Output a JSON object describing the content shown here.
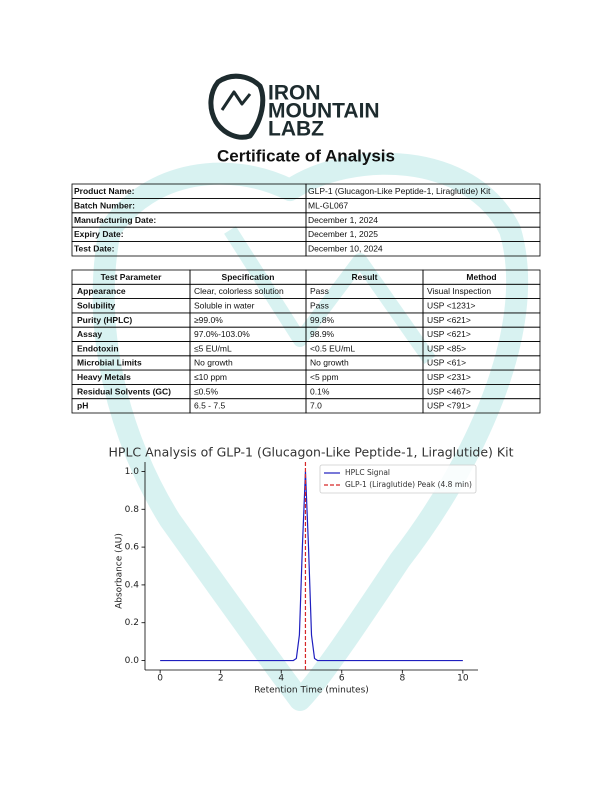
{
  "header": {
    "brand": [
      "IRON",
      "MOUNTAIN",
      "LABZ"
    ],
    "title": "Certificate of Analysis"
  },
  "info_table": {
    "rows": [
      [
        "Product Name:",
        "GLP-1 (Glucagon-Like Peptide-1, Liraglutide) Kit"
      ],
      [
        "Batch Number:",
        "ML-GL067"
      ],
      [
        "Manufacturing Date:",
        "December 1, 2024"
      ],
      [
        "Expiry Date:",
        "December 1, 2025"
      ],
      [
        "Test Date:",
        "December 10, 2024"
      ]
    ]
  },
  "test_table": {
    "columns": [
      "Test Parameter",
      "Specification",
      "Result",
      "Method"
    ],
    "rows": [
      [
        "Appearance",
        "Clear, colorless solution",
        "Pass",
        "Visual Inspection"
      ],
      [
        "Solubility",
        "Soluble in water",
        "Pass",
        "USP <1231>"
      ],
      [
        "Purity (HPLC)",
        "≥99.0%",
        "99.8%",
        "USP <621>"
      ],
      [
        "Assay",
        "97.0%-103.0%",
        "98.9%",
        "USP <621>"
      ],
      [
        "Endotoxin",
        "≤5 EU/mL",
        "<0.5 EU/mL",
        "USP <85>"
      ],
      [
        "Microbial Limits",
        "No growth",
        "No growth",
        "USP <61>"
      ],
      [
        "Heavy Metals",
        "≤10 ppm",
        "<5 ppm",
        "USP <231>"
      ],
      [
        "Residual Solvents (GC)",
        "≤0.5%",
        "0.1%",
        "USP <467>"
      ],
      [
        "pH",
        "6.5 - 7.5",
        "7.0",
        "USP <791>"
      ]
    ]
  },
  "chart_data": {
    "type": "line",
    "title": "HPLC Analysis of GLP-1 (Glucagon-Like Peptide-1, Liraglutide) Kit",
    "x_label": "Retention Time (minutes)",
    "y_label": "Absorbance (AU)",
    "x": [
      0,
      0.5,
      1,
      1.5,
      2,
      2.5,
      3,
      3.5,
      4,
      4.4,
      4.5,
      4.6,
      4.7,
      4.8,
      4.9,
      5,
      5.1,
      5.2,
      5.5,
      6,
      6.5,
      7,
      7.5,
      8,
      8.5,
      9,
      9.5,
      10
    ],
    "series": [
      {
        "name": "HPLC Signal",
        "color": "#1f1fbf",
        "values": [
          0,
          0,
          0,
          0,
          0,
          0,
          0,
          0,
          0,
          0,
          0.011,
          0.135,
          0.607,
          1.0,
          0.607,
          0.135,
          0.011,
          0,
          0,
          0,
          0,
          0,
          0,
          0,
          0,
          0,
          0,
          0
        ]
      }
    ],
    "vlines": [
      {
        "name": "GLP-1 (Liraglutide) Peak (4.8 min)",
        "color": "#d62728",
        "x": 4.8
      }
    ],
    "xlim": [
      -0.5,
      10.5
    ],
    "ylim": [
      -0.05,
      1.05
    ],
    "xticks": [
      0,
      2,
      4,
      6,
      8,
      10
    ],
    "yticks": [
      {
        "value": 0,
        "label": "0.0"
      },
      0.2,
      0.4,
      0.6,
      0.8,
      {
        "value": 1,
        "label": "1.0"
      }
    ],
    "legend": "upper right"
  }
}
